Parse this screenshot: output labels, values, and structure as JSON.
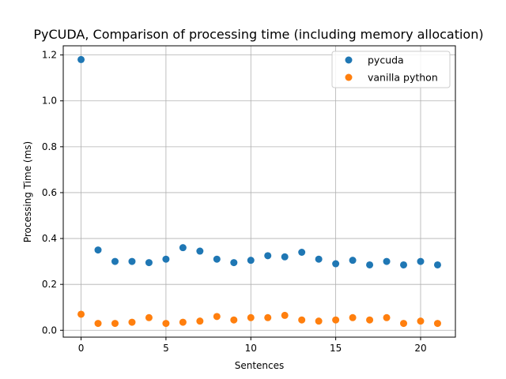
{
  "chart_data": {
    "type": "scatter",
    "title": "PyCUDA, Comparison of processing time (including memory allocation)",
    "xlabel": "Sentences",
    "ylabel": "Processing Time (ms)",
    "xlim": [
      -1.05,
      22.05
    ],
    "ylim": [
      -0.03,
      1.24
    ],
    "xticks": [
      0,
      5,
      10,
      15,
      20
    ],
    "yticks": [
      0.0,
      0.2,
      0.4,
      0.6,
      0.8,
      1.0,
      1.2
    ],
    "xtick_labels": [
      "0",
      "5",
      "10",
      "15",
      "20"
    ],
    "ytick_labels": [
      "0.0",
      "0.2",
      "0.4",
      "0.6",
      "0.8",
      "1.0",
      "1.2"
    ],
    "grid": true,
    "legend_position": "top-right",
    "x": [
      0,
      1,
      2,
      3,
      4,
      5,
      6,
      7,
      8,
      9,
      10,
      11,
      12,
      13,
      14,
      15,
      16,
      17,
      18,
      19,
      20,
      21
    ],
    "series": [
      {
        "name": "pycuda",
        "color": "#1f77b4",
        "values": [
          1.18,
          0.35,
          0.3,
          0.3,
          0.295,
          0.31,
          0.36,
          0.345,
          0.31,
          0.295,
          0.305,
          0.325,
          0.32,
          0.34,
          0.31,
          0.29,
          0.305,
          0.285,
          0.3,
          0.285,
          0.3,
          0.285
        ]
      },
      {
        "name": "vanilla python",
        "color": "#ff7f0e",
        "values": [
          0.07,
          0.03,
          0.03,
          0.035,
          0.055,
          0.03,
          0.035,
          0.04,
          0.06,
          0.045,
          0.055,
          0.055,
          0.065,
          0.045,
          0.04,
          0.045,
          0.055,
          0.045,
          0.055,
          0.03,
          0.04,
          0.03
        ]
      }
    ]
  }
}
